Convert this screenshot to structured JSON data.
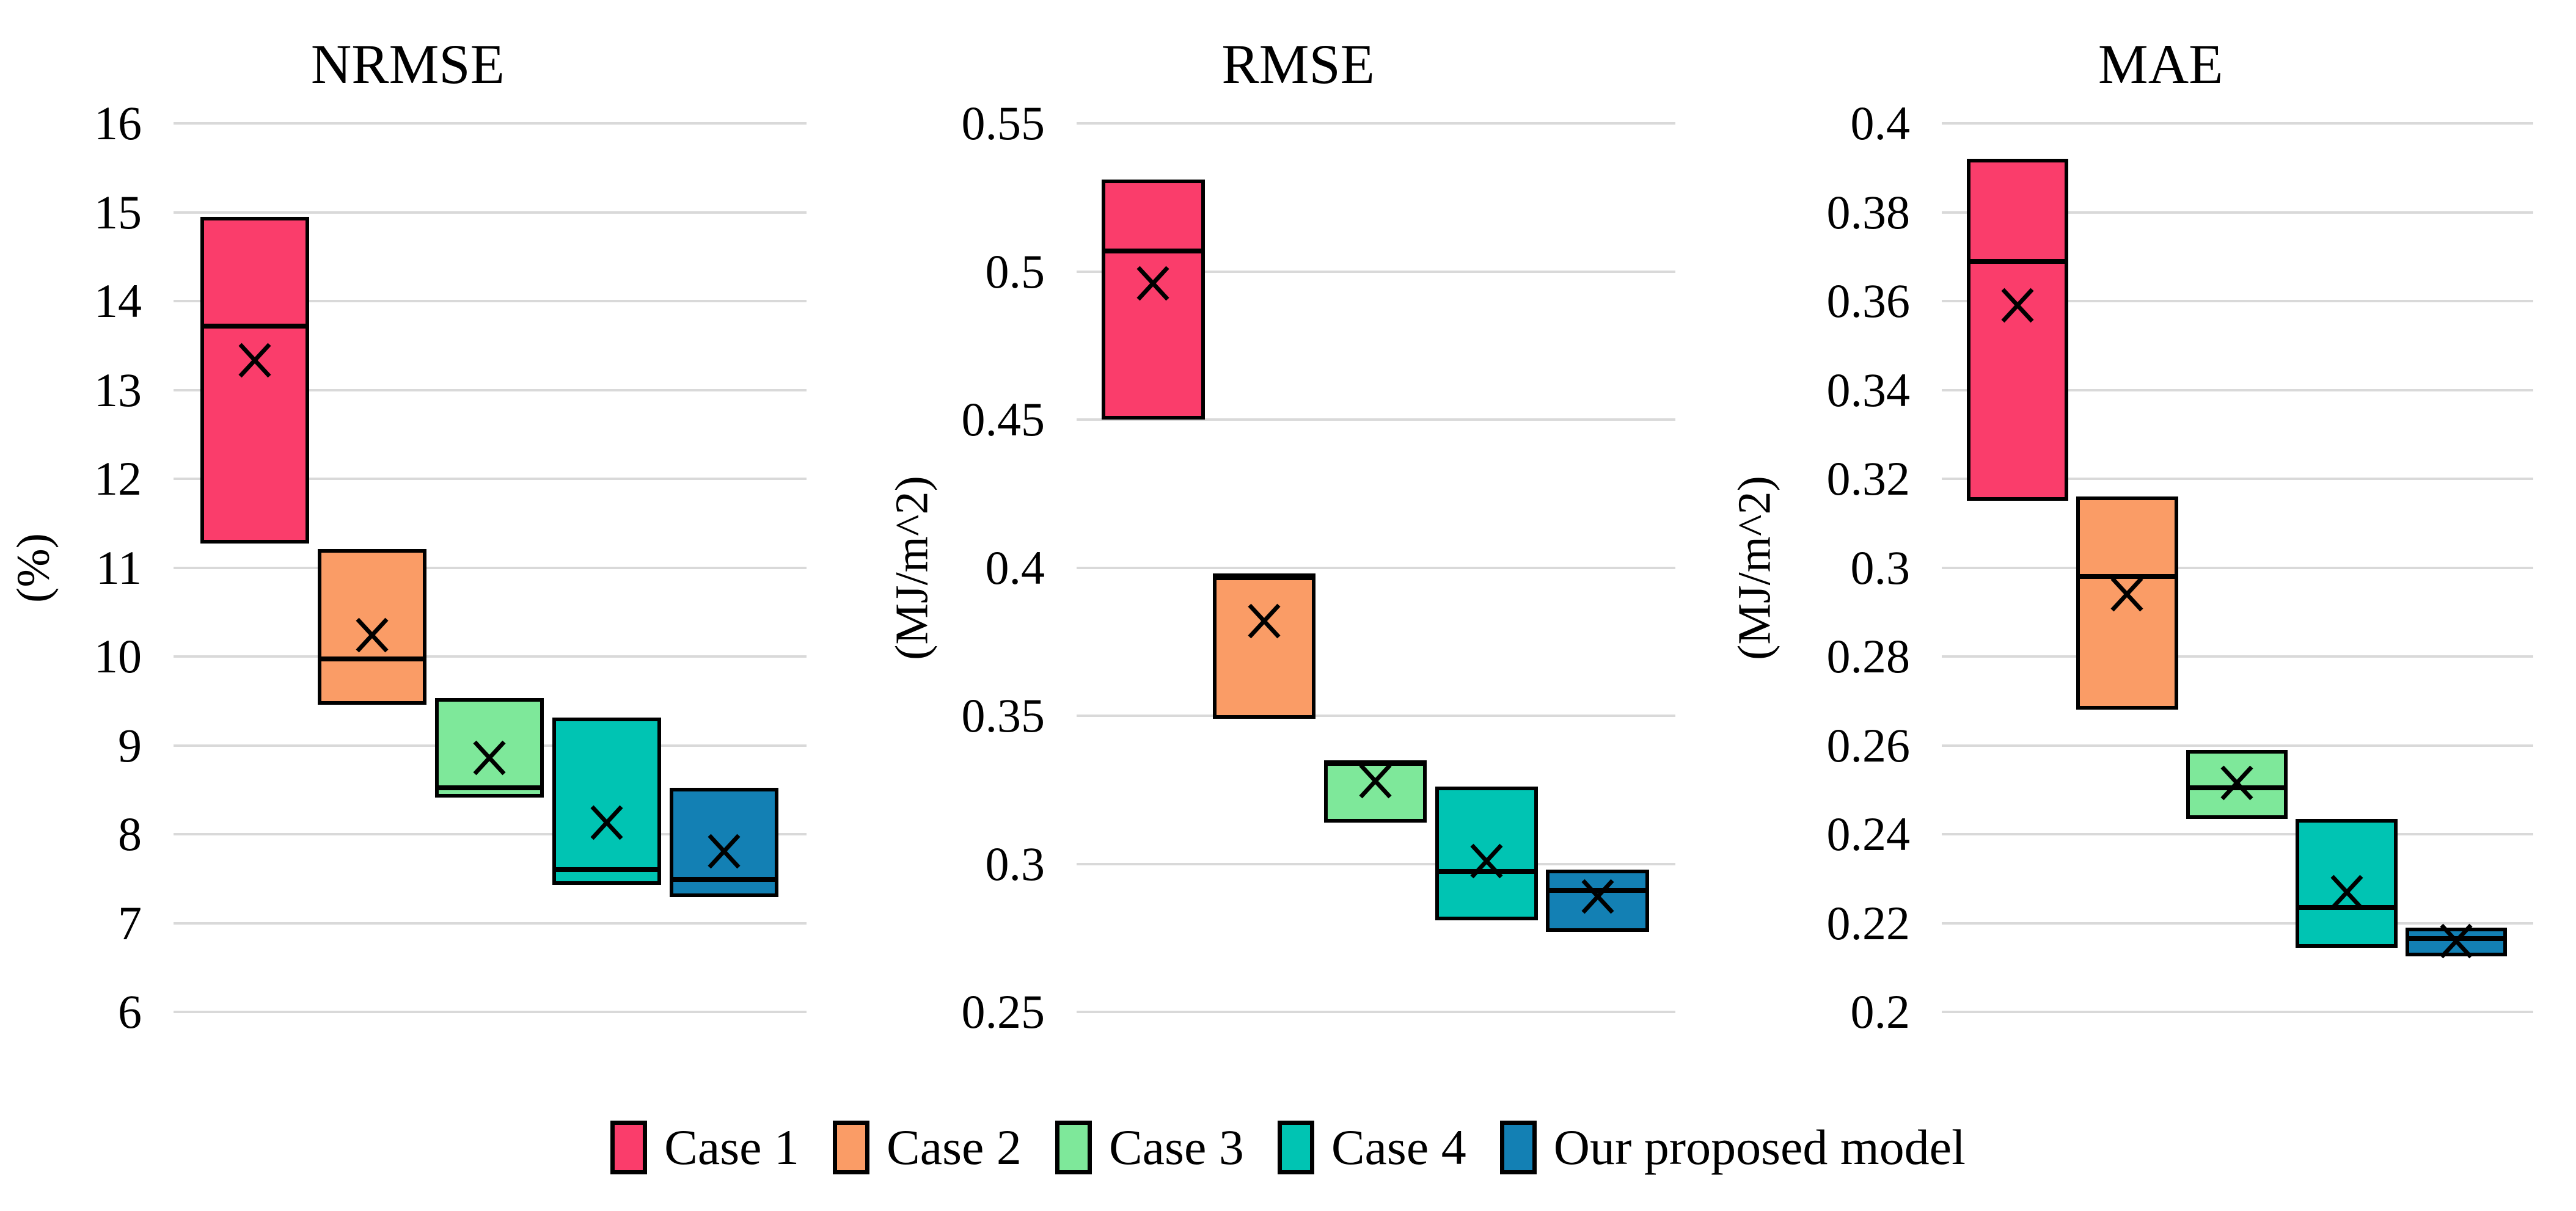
{
  "figure": {
    "background": "#ffffff",
    "gridline_color": "#d9d9d9"
  },
  "legend": {
    "items": [
      {
        "label": "Case 1",
        "color": "#FA3D6B"
      },
      {
        "label": "Case 2",
        "color": "#FA9C66"
      },
      {
        "label": "Case 3",
        "color": "#7EE89A"
      },
      {
        "label": "Case 4",
        "color": "#00C4B3"
      },
      {
        "label": "Our proposed model",
        "color": "#1380B4"
      }
    ]
  },
  "chart_data": [
    {
      "type": "box",
      "title": "NRMSE",
      "ylabel": "(%)",
      "ylim": [
        6,
        16
      ],
      "ytick_step": 1,
      "grid": true,
      "legend_position": "bottom",
      "yticks": [
        {
          "label": "16",
          "value": 16
        },
        {
          "label": "15",
          "value": 15
        },
        {
          "label": "14",
          "value": 14
        },
        {
          "label": "13",
          "value": 13
        },
        {
          "label": "12",
          "value": 12
        },
        {
          "label": "11",
          "value": 11
        },
        {
          "label": "10",
          "value": 10
        },
        {
          "label": "9",
          "value": 9
        },
        {
          "label": "8",
          "value": 8
        },
        {
          "label": "7",
          "value": 7
        },
        {
          "label": "6",
          "value": 6
        }
      ],
      "series": [
        {
          "name": "Case 1",
          "color": "#FA3D6B",
          "min": 11.27,
          "max": 14.95,
          "median": 13.72,
          "mean": 13.33
        },
        {
          "name": "Case 2",
          "color": "#FA9C66",
          "min": 9.46,
          "max": 11.21,
          "median": 9.97,
          "mean": 10.24
        },
        {
          "name": "Case 3",
          "color": "#7EE89A",
          "min": 8.41,
          "max": 9.53,
          "median": 8.52,
          "mean": 8.86
        },
        {
          "name": "Case 4",
          "color": "#00C4B3",
          "min": 7.43,
          "max": 9.31,
          "median": 7.6,
          "mean": 8.13
        },
        {
          "name": "Our proposed model",
          "color": "#1380B4",
          "min": 7.29,
          "max": 8.52,
          "median": 7.49,
          "mean": 7.81
        }
      ]
    },
    {
      "type": "box",
      "title": "RMSE",
      "ylabel": "(MJ/m^2)",
      "ylim": [
        0.25,
        0.55
      ],
      "ytick_step": 0.05,
      "grid": true,
      "legend_position": "bottom",
      "yticks": [
        {
          "label": "0.55",
          "value": 0.55
        },
        {
          "label": "0.5",
          "value": 0.5
        },
        {
          "label": "0.45",
          "value": 0.45
        },
        {
          "label": "0.4",
          "value": 0.4
        },
        {
          "label": "0.35",
          "value": 0.35
        },
        {
          "label": "0.3",
          "value": 0.3
        },
        {
          "label": "0.25",
          "value": 0.25
        }
      ],
      "series": [
        {
          "name": "Case 1",
          "color": "#FA3D6B",
          "min": 0.45,
          "max": 0.531,
          "median": 0.507,
          "mean": 0.496
        },
        {
          "name": "Case 2",
          "color": "#FA9C66",
          "min": 0.349,
          "max": 0.398,
          "median": 0.3965,
          "mean": 0.382
        },
        {
          "name": "Case 3",
          "color": "#7EE89A",
          "min": 0.314,
          "max": 0.335,
          "median": 0.334,
          "mean": 0.328
        },
        {
          "name": "Case 4",
          "color": "#00C4B3",
          "min": 0.281,
          "max": 0.326,
          "median": 0.2975,
          "mean": 0.301
        },
        {
          "name": "Our proposed model",
          "color": "#1380B4",
          "min": 0.277,
          "max": 0.298,
          "median": 0.291,
          "mean": 0.289
        }
      ]
    },
    {
      "type": "box",
      "title": "MAE",
      "ylabel": "(MJ/m^2)",
      "ylim": [
        0.2,
        0.4
      ],
      "ytick_step": 0.02,
      "grid": true,
      "legend_position": "bottom",
      "yticks": [
        {
          "label": "0.4",
          "value": 0.4
        },
        {
          "label": "0.38",
          "value": 0.38
        },
        {
          "label": "0.36",
          "value": 0.36
        },
        {
          "label": "0.34",
          "value": 0.34
        },
        {
          "label": "0.32",
          "value": 0.32
        },
        {
          "label": "0.3",
          "value": 0.3
        },
        {
          "label": "0.28",
          "value": 0.28
        },
        {
          "label": "0.26",
          "value": 0.26
        },
        {
          "label": "0.24",
          "value": 0.24
        },
        {
          "label": "0.22",
          "value": 0.22
        },
        {
          "label": "0.2",
          "value": 0.2
        }
      ],
      "series": [
        {
          "name": "Case 1",
          "color": "#FA3D6B",
          "min": 0.315,
          "max": 0.392,
          "median": 0.369,
          "mean": 0.359
        },
        {
          "name": "Case 2",
          "color": "#FA9C66",
          "min": 0.268,
          "max": 0.316,
          "median": 0.298,
          "mean": 0.294
        },
        {
          "name": "Case 3",
          "color": "#7EE89A",
          "min": 0.2435,
          "max": 0.259,
          "median": 0.2505,
          "mean": 0.2515
        },
        {
          "name": "Case 4",
          "color": "#00C4B3",
          "min": 0.2145,
          "max": 0.2435,
          "median": 0.2235,
          "mean": 0.227
        },
        {
          "name": "Our proposed model",
          "color": "#1380B4",
          "min": 0.2125,
          "max": 0.219,
          "median": 0.2165,
          "mean": 0.216
        }
      ]
    }
  ]
}
